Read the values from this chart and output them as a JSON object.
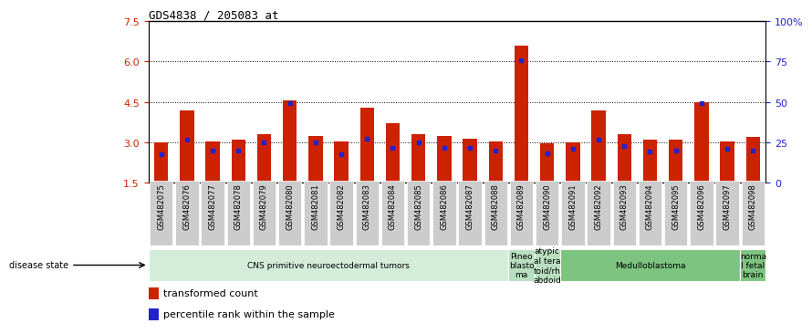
{
  "title": "GDS4838 / 205083_at",
  "samples": [
    "GSM482075",
    "GSM482076",
    "GSM482077",
    "GSM482078",
    "GSM482079",
    "GSM482080",
    "GSM482081",
    "GSM482082",
    "GSM482083",
    "GSM482084",
    "GSM482085",
    "GSM482086",
    "GSM482087",
    "GSM482088",
    "GSM482089",
    "GSM482090",
    "GSM482091",
    "GSM482092",
    "GSM482093",
    "GSM482094",
    "GSM482095",
    "GSM482096",
    "GSM482097",
    "GSM482098"
  ],
  "red_values": [
    3.0,
    4.2,
    3.05,
    3.1,
    3.3,
    4.55,
    3.25,
    3.05,
    4.3,
    3.7,
    3.3,
    3.25,
    3.15,
    3.05,
    6.6,
    2.95,
    3.0,
    4.2,
    3.3,
    3.1,
    3.1,
    4.5,
    3.05,
    3.2
  ],
  "blue_values": [
    2.55,
    3.1,
    2.7,
    2.7,
    3.0,
    4.45,
    3.0,
    2.55,
    3.15,
    2.8,
    3.0,
    2.8,
    2.8,
    2.7,
    6.05,
    2.6,
    2.75,
    3.1,
    2.85,
    2.65,
    2.7,
    4.45,
    2.75,
    2.7
  ],
  "ymin": 1.5,
  "ymax": 7.5,
  "yticks_left": [
    1.5,
    3.0,
    4.5,
    6.0,
    7.5
  ],
  "yticks_right_labels": [
    "0",
    "25",
    "50",
    "75",
    "100%"
  ],
  "disease_groups": [
    {
      "label": "CNS primitive neuroectodermal tumors",
      "start": 0,
      "end": 14,
      "color": "#d4edda"
    },
    {
      "label": "Pineo\nblasto\nma",
      "start": 14,
      "end": 15,
      "color": "#b8dfc0"
    },
    {
      "label": "atypic\nal tera\ntoid/rh\nabdoid",
      "start": 15,
      "end": 16,
      "color": "#b8dfc0"
    },
    {
      "label": "Medulloblastoma",
      "start": 16,
      "end": 23,
      "color": "#7cc47f"
    },
    {
      "label": "norma\nl fetal\nbrain",
      "start": 23,
      "end": 24,
      "color": "#7cc47f"
    }
  ],
  "bar_color": "#cc2200",
  "blue_color": "#2222cc",
  "left_tick_color": "#cc2200",
  "right_tick_color": "#2222cc"
}
